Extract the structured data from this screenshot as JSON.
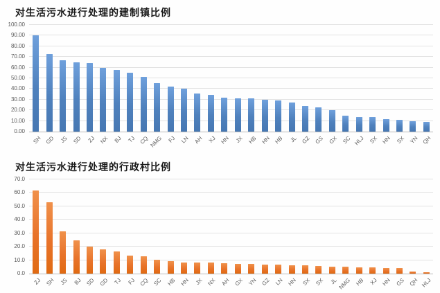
{
  "page": {
    "background_color": "#fefefe",
    "axis_text_color": "#595959",
    "gridline_color": "#e2e2e2"
  },
  "chart_data": [
    {
      "type": "bar",
      "title": "对生活污水进行处理的建制镇比例",
      "xlabel": "",
      "ylabel": "",
      "ylim": [
        0,
        100
      ],
      "grid": true,
      "legend": "none",
      "ytick_labels": [
        "100.00",
        "90.00",
        "80.00",
        "70.00",
        "60.00",
        "50.00",
        "40.00",
        "30.00",
        "20.00",
        "10.00",
        "0.00"
      ],
      "categories": [
        "SH",
        "GD",
        "JS",
        "SD",
        "ZJ",
        "NX",
        "BJ",
        "TJ",
        "CQ",
        "NMG",
        "FJ",
        "LN",
        "AH",
        "XJ",
        "HN",
        "JX",
        "HB",
        "HN",
        "HB",
        "JL",
        "GZ",
        "GS",
        "GX",
        "SC",
        "HLJ",
        "SX",
        "HN",
        "SX",
        "YN",
        "QH"
      ],
      "values": [
        90,
        73,
        67,
        65,
        64,
        60,
        57.5,
        55.5,
        51.5,
        45.5,
        42,
        40.5,
        36,
        34.5,
        32,
        31.5,
        31,
        30,
        29.5,
        27.5,
        24,
        23,
        20,
        15,
        13.5,
        13.5,
        12,
        11,
        9.5,
        9
      ],
      "bar_color": "#4f81bd",
      "bar_color_light": "#6fa0dc",
      "bar_color_dark": "#4677b2"
    },
    {
      "type": "bar",
      "title": "对生活污水进行处理的行政村比例",
      "xlabel": "",
      "ylabel": "",
      "ylim": [
        0,
        70
      ],
      "grid": true,
      "legend": "none",
      "ytick_labels": [
        "70.0",
        "60.0",
        "50.0",
        "40.0",
        "30.0",
        "20.0",
        "10.0",
        "0.0"
      ],
      "categories": [
        "ZJ",
        "SH",
        "JS",
        "BJ",
        "SD",
        "GD",
        "TJ",
        "FJ",
        "CQ",
        "SC",
        "HB",
        "HN",
        "JX",
        "NX",
        "AH",
        "GX",
        "YN",
        "GZ",
        "LN",
        "HN",
        "SX",
        "SX",
        "JL",
        "NMG",
        "HB",
        "XJ",
        "HN",
        "GS",
        "QH",
        "HLJ"
      ],
      "values": [
        62,
        53,
        31.5,
        24.5,
        20,
        18,
        16.5,
        13.5,
        13,
        10.5,
        9.5,
        8.5,
        8,
        8,
        7.5,
        7,
        7,
        6.5,
        6.5,
        6,
        6,
        5.5,
        5,
        5,
        4.5,
        4.5,
        4,
        4,
        1.8,
        1
      ],
      "bar_color": "#e8732a",
      "bar_color_light": "#f0914b",
      "bar_color_dark": "#e06a12"
    }
  ]
}
